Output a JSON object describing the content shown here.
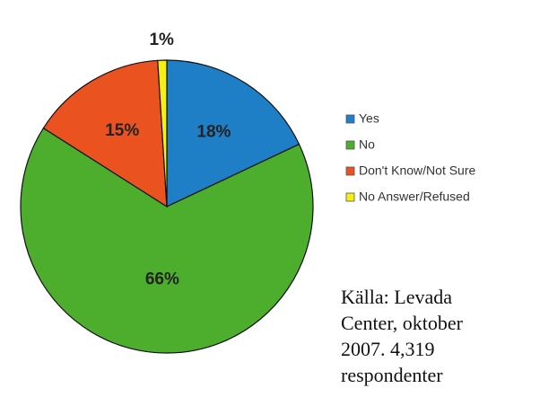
{
  "chart_data": {
    "type": "pie",
    "categories": [
      "Yes",
      "No",
      "Don't Know/Not Sure",
      "No Answer/Refused"
    ],
    "values": [
      18,
      66,
      15,
      1
    ],
    "value_labels": [
      "18%",
      "66%",
      "15%",
      "1%"
    ],
    "colors": [
      "#1f7fc6",
      "#4cae2c",
      "#ea5320",
      "#f5ef12"
    ],
    "legend": "right",
    "annotation": "Källa: Levada Center, oktober 2007. 4,319 respondenter"
  }
}
